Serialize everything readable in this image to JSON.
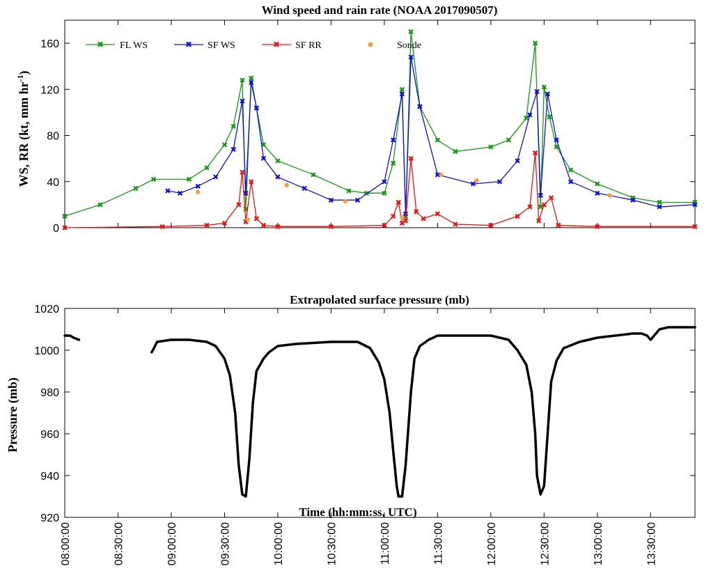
{
  "colors": {
    "fl_ws": "#119911",
    "sf_ws": "#1010dd",
    "sf_rr": "#ee1111",
    "sonde": "#f0a040",
    "pressure": "#000000"
  },
  "chart_data": [
    {
      "type": "line",
      "title": "Wind speed and rain rate (NOAA 2017090507)",
      "ylabel": "WS, RR (kt, mm hr⁻¹)",
      "xlim": [
        "08:00:00",
        "13:55:00"
      ],
      "ylim": [
        0,
        180
      ],
      "yticks": [
        0,
        40,
        80,
        120,
        160
      ],
      "legend": "top-left",
      "series": [
        {
          "name": "FL WS",
          "color": "#119911",
          "marker": "x",
          "x": [
            "08:00",
            "08:20",
            "08:40",
            "08:50",
            "09:10",
            "09:20",
            "09:30",
            "09:35",
            "09:40",
            "09:42",
            "09:45",
            "09:48",
            "09:52",
            "10:00",
            "10:20",
            "10:40",
            "10:50",
            "11:00",
            "11:05",
            "11:10",
            "11:12",
            "11:15",
            "11:20",
            "11:30",
            "11:40",
            "12:00",
            "12:10",
            "12:20",
            "12:25",
            "12:28",
            "12:30",
            "12:33",
            "12:37",
            "12:45",
            "13:00",
            "13:20",
            "13:35",
            "13:55"
          ],
          "y": [
            10,
            20,
            34,
            42,
            42,
            52,
            72,
            88,
            128,
            16,
            130,
            104,
            72,
            58,
            46,
            32,
            30,
            30,
            56,
            120,
            10,
            170,
            105,
            76,
            66,
            70,
            76,
            95,
            160,
            18,
            122,
            96,
            70,
            50,
            38,
            26,
            22,
            22
          ]
        },
        {
          "name": "SF WS",
          "color": "#1010dd",
          "marker": "x",
          "x": [
            "08:58",
            "09:05",
            "09:15",
            "09:25",
            "09:35",
            "09:40",
            "09:42",
            "09:45",
            "09:48",
            "09:52",
            "10:00",
            "10:15",
            "10:30",
            "10:45",
            "11:00",
            "11:05",
            "11:10",
            "11:12",
            "11:15",
            "11:20",
            "11:30",
            "11:50",
            "12:05",
            "12:15",
            "12:22",
            "12:26",
            "12:28",
            "12:32",
            "12:37",
            "12:45",
            "13:00",
            "13:20",
            "13:35",
            "13:55"
          ],
          "y": [
            32,
            30,
            36,
            44,
            68,
            110,
            30,
            126,
            104,
            60,
            44,
            34,
            24,
            24,
            40,
            76,
            116,
            12,
            148,
            105,
            46,
            38,
            40,
            58,
            98,
            118,
            28,
            116,
            76,
            40,
            30,
            24,
            18,
            20
          ]
        },
        {
          "name": "SF RR",
          "color": "#ee1111",
          "marker": "x",
          "x": [
            "08:00",
            "08:55",
            "09:20",
            "09:30",
            "09:38",
            "09:40",
            "09:42",
            "09:45",
            "09:48",
            "09:52",
            "10:00",
            "10:30",
            "11:00",
            "11:05",
            "11:08",
            "11:10",
            "11:12",
            "11:15",
            "11:18",
            "11:22",
            "11:30",
            "11:40",
            "12:00",
            "12:15",
            "12:22",
            "12:25",
            "12:27",
            "12:30",
            "12:34",
            "12:38",
            "13:00",
            "13:55"
          ],
          "y": [
            0,
            1,
            2,
            4,
            20,
            48,
            5,
            40,
            8,
            2,
            1,
            1,
            2,
            10,
            22,
            4,
            6,
            60,
            14,
            8,
            12,
            3,
            2,
            10,
            18,
            65,
            6,
            20,
            26,
            2,
            1,
            1
          ]
        }
      ],
      "sonde": {
        "name": "Sonde",
        "color": "#f0a040",
        "x": [
          "09:15",
          "09:43",
          "10:05",
          "10:38",
          "11:10",
          "11:32",
          "11:52",
          "13:07"
        ],
        "y": [
          31,
          7,
          37,
          23,
          9,
          46,
          41,
          28
        ]
      }
    },
    {
      "type": "line",
      "title": "Extrapolated surface pressure (mb)",
      "ylabel": "Pressure (mb)",
      "xlabel": "Time (hh:mm:ss, UTC)",
      "xlim": [
        "08:00:00",
        "13:55:00"
      ],
      "ylim": [
        920,
        1020
      ],
      "yticks": [
        920,
        940,
        960,
        980,
        1000,
        1020
      ],
      "xticks": [
        "08:00:00",
        "08:30:00",
        "09:00:00",
        "09:30:00",
        "10:00:00",
        "10:30:00",
        "11:00:00",
        "11:30:00",
        "12:00:00",
        "12:30:00",
        "13:00:00",
        "13:30:00"
      ],
      "series": [
        {
          "name": "",
          "color": "#000000",
          "segments": [
            {
              "x": [
                "08:00",
                "08:03",
                "08:05",
                "08:08"
              ],
              "y": [
                1007,
                1007,
                1006,
                1005
              ]
            },
            {
              "x": [
                "08:49",
                "08:52",
                "09:00",
                "09:10",
                "09:20",
                "09:25",
                "09:30",
                "09:33",
                "09:36",
                "09:38",
                "09:40",
                "09:42",
                "09:44",
                "09:46",
                "09:48",
                "09:52",
                "09:55",
                "10:00",
                "10:10",
                "10:30",
                "10:45",
                "10:52",
                "10:57",
                "11:00",
                "11:03",
                "11:05",
                "11:07",
                "11:08",
                "11:10",
                "11:12",
                "11:15",
                "11:17",
                "11:20",
                "11:25",
                "11:30",
                "11:40",
                "12:00",
                "12:10",
                "12:15",
                "12:20",
                "12:23",
                "12:25",
                "12:26",
                "12:28",
                "12:30",
                "12:32",
                "12:34",
                "12:37",
                "12:41",
                "12:50",
                "13:00",
                "13:10",
                "13:20",
                "13:25",
                "13:28",
                "13:30",
                "13:33",
                "13:35",
                "13:40",
                "13:55"
              ],
              "y": [
                999,
                1004,
                1005,
                1005,
                1004,
                1002,
                996,
                988,
                970,
                945,
                931,
                930,
                948,
                975,
                990,
                996,
                999,
                1002,
                1003,
                1004,
                1004,
                1001,
                994,
                986,
                970,
                952,
                935,
                930,
                930,
                945,
                980,
                996,
                1002,
                1005,
                1007,
                1007,
                1007,
                1005,
                1000,
                993,
                980,
                960,
                940,
                931,
                935,
                960,
                985,
                995,
                1001,
                1004,
                1006,
                1007,
                1008,
                1008,
                1007,
                1005,
                1008,
                1010,
                1011,
                1011
              ]
            }
          ]
        }
      ]
    }
  ]
}
